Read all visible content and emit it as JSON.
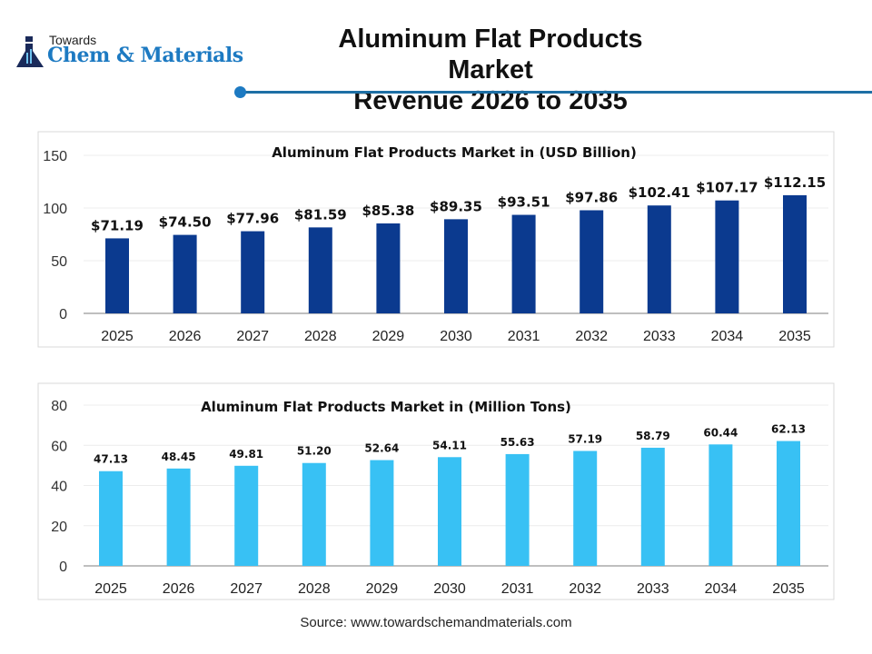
{
  "header": {
    "logo_small": "Towards",
    "logo_main": "Chem & Materials",
    "title_line1": "Aluminum Flat Products Market",
    "title_line2": "Revenue 2026 to 2035"
  },
  "source": "Source: www.towardschemandmaterials.com",
  "chart_data": [
    {
      "type": "bar",
      "title": "Aluminum Flat Products Market in (USD Billion)",
      "categories": [
        "2025",
        "2026",
        "2027",
        "2028",
        "2029",
        "2030",
        "2031",
        "2032",
        "2033",
        "2034",
        "2035"
      ],
      "values": [
        71.19,
        74.5,
        77.96,
        81.59,
        85.38,
        89.35,
        93.51,
        97.86,
        102.41,
        107.17,
        112.15
      ],
      "labels": [
        "$71.19",
        "$74.50",
        "$77.96",
        "$81.59",
        "$85.38",
        "$89.35",
        "$93.51",
        "$97.86",
        "$102.41",
        "$107.17",
        "$112.15"
      ],
      "yticks": [
        "0",
        "50",
        "100",
        "150"
      ],
      "ylim": [
        0,
        150
      ],
      "grid": true,
      "color": "#0b3a8f"
    },
    {
      "type": "bar",
      "title": "Aluminum Flat Products Market in (Million Tons)",
      "categories": [
        "2025",
        "2026",
        "2027",
        "2028",
        "2029",
        "2030",
        "2031",
        "2032",
        "2033",
        "2034",
        "2035"
      ],
      "values": [
        47.13,
        48.45,
        49.81,
        51.2,
        52.64,
        54.11,
        55.63,
        57.19,
        58.79,
        60.44,
        62.13
      ],
      "labels": [
        "47.13",
        "48.45",
        "49.81",
        "51.20",
        "52.64",
        "54.11",
        "55.63",
        "57.19",
        "58.79",
        "60.44",
        "62.13"
      ],
      "yticks": [
        "0",
        "20",
        "40",
        "60",
        "80"
      ],
      "ylim": [
        0,
        80
      ],
      "grid": true,
      "color": "#38c1f4"
    }
  ]
}
